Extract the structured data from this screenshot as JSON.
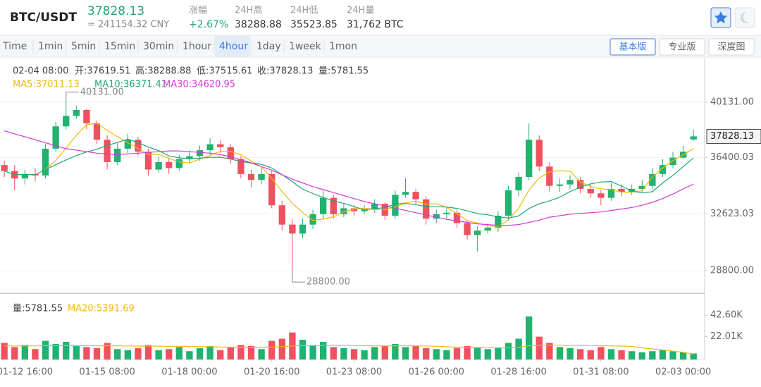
{
  "header": {
    "pair": "BTC/USDT",
    "price": "37828.13",
    "price_cny": "≈ 241154.32 CNY",
    "stats": [
      {
        "label": "涨幅",
        "value": "+2.67%"
      },
      {
        "label": "24H高",
        "value": "38288.88"
      },
      {
        "label": "24H低",
        "value": "35523.85"
      },
      {
        "label": "24H量",
        "value": "31,762 BTC"
      }
    ]
  },
  "toolbar": {
    "intervals": [
      {
        "label": "Time"
      },
      {
        "label": "1min"
      },
      {
        "label": "5min"
      },
      {
        "label": "15min"
      },
      {
        "label": "30min"
      },
      {
        "label": "1hour"
      },
      {
        "label": "4hour",
        "active": true
      },
      {
        "label": "1day"
      },
      {
        "label": "1week"
      },
      {
        "label": "1mon"
      }
    ],
    "views": [
      {
        "label": "基本版",
        "active": true
      },
      {
        "label": "专业版"
      },
      {
        "label": "深度图"
      }
    ]
  },
  "chart_data": [
    {
      "type": "candlestick",
      "info": [
        "02-04 08:00",
        "开:37619.51",
        "高:38288.88",
        "低:37515.61",
        "收:37828.13",
        "量:5781.55"
      ],
      "legend": [
        "MA5:37011.13",
        "MA10:36371.41",
        "MA30:34620.95"
      ],
      "categories": [
        null,
        null,
        "01-12 16:00",
        null,
        null,
        null,
        null,
        null,
        null,
        null,
        "01-15 08:00",
        null,
        null,
        null,
        null,
        null,
        null,
        null,
        "01-18 00:00",
        null,
        null,
        null,
        null,
        null,
        null,
        null,
        "01-20 16:00",
        null,
        null,
        null,
        null,
        null,
        null,
        null,
        "01-23 08:00",
        null,
        null,
        null,
        null,
        null,
        null,
        null,
        "01-26 00:00",
        null,
        null,
        null,
        null,
        null,
        null,
        null,
        "01-28 16:00",
        null,
        null,
        null,
        null,
        null,
        null,
        null,
        "01-31 08:00",
        null,
        null,
        null,
        null,
        null,
        null,
        null,
        "02-03 00:00",
        null
      ],
      "open": [
        35900,
        35500,
        35000,
        35300,
        35200,
        37000,
        38500,
        39200,
        39600,
        38700,
        37600,
        36100,
        37000,
        37600,
        36800,
        35600,
        36100,
        35700,
        36300,
        36500,
        36900,
        37300,
        37100,
        36300,
        35300,
        34900,
        35300,
        33200,
        31900,
        31300,
        31900,
        32600,
        33700,
        32600,
        33000,
        32800,
        32900,
        33300,
        32500,
        33900,
        34100,
        33600,
        32300,
        32600,
        32700,
        32000,
        31200,
        31500,
        31700,
        32500,
        34200,
        35100,
        37600,
        35800,
        34500,
        34600,
        34900,
        34300,
        34000,
        33700,
        34300,
        34100,
        34300,
        34500,
        35300,
        35900,
        36400,
        37619.51
      ],
      "high": [
        36200,
        35900,
        35600,
        35700,
        37300,
        38800,
        40131,
        39900,
        39700,
        38900,
        37900,
        37400,
        38000,
        37800,
        37000,
        36500,
        36400,
        36600,
        36900,
        37200,
        37700,
        37600,
        37300,
        36500,
        35600,
        35700,
        35500,
        33500,
        32300,
        32300,
        32900,
        34200,
        33900,
        33300,
        33200,
        33200,
        33600,
        33400,
        34200,
        35000,
        34300,
        33800,
        32900,
        33000,
        32900,
        32200,
        31800,
        32000,
        32800,
        34500,
        35400,
        38700,
        37900,
        36100,
        35000,
        35200,
        35100,
        34600,
        34200,
        34700,
        34600,
        34600,
        34900,
        35700,
        36300,
        36800,
        37200,
        38288.88
      ],
      "low": [
        35100,
        34200,
        34600,
        34800,
        35000,
        36800,
        38300,
        39000,
        38300,
        37300,
        35600,
        35900,
        36700,
        36500,
        35200,
        35400,
        35300,
        35500,
        36000,
        36200,
        36600,
        36700,
        36000,
        35000,
        34400,
        34600,
        33000,
        31500,
        28800,
        31000,
        31600,
        32300,
        32300,
        32400,
        32500,
        32600,
        32700,
        32200,
        32300,
        33700,
        33300,
        31900,
        32000,
        32300,
        31700,
        30900,
        30100,
        31300,
        31400,
        32200,
        33800,
        34900,
        35500,
        34100,
        34100,
        34300,
        34000,
        33700,
        33200,
        33500,
        33800,
        33900,
        34100,
        34300,
        35100,
        35700,
        36300,
        37515.61
      ],
      "close": [
        35500,
        35000,
        35300,
        35200,
        37000,
        38500,
        39200,
        39600,
        38700,
        37600,
        36100,
        37000,
        37600,
        36800,
        35600,
        36100,
        35700,
        36300,
        36500,
        36900,
        37300,
        37100,
        36300,
        35300,
        34900,
        35300,
        33200,
        31900,
        31300,
        31900,
        32600,
        33700,
        32600,
        33000,
        32800,
        32900,
        33300,
        32500,
        33900,
        34100,
        33600,
        32300,
        32600,
        32700,
        32000,
        31200,
        31500,
        31700,
        32500,
        34200,
        35100,
        37600,
        35800,
        34500,
        34600,
        34900,
        34300,
        34000,
        33700,
        34300,
        34100,
        34300,
        34500,
        35300,
        35900,
        36400,
        36800,
        37828.13
      ],
      "up_color": "#21b26f",
      "down_color": "#f0515f",
      "series": [
        {
          "color": "#f0b90b",
          "values": [
            35500,
            35250,
            35270,
            35250,
            35600,
            36200,
            37040,
            37900,
            38600,
            38720,
            38240,
            37800,
            37400,
            37020,
            36620,
            36620,
            36360,
            36100,
            36040,
            36300,
            36540,
            36820,
            36820,
            36580,
            36180,
            35780,
            35000,
            34120,
            33320,
            32720,
            32180,
            32280,
            32420,
            32760,
            32940,
            33000,
            32920,
            32900,
            33080,
            33360,
            33480,
            33280,
            33300,
            33060,
            32640,
            32160,
            32000,
            31820,
            31780,
            32220,
            33000,
            34220,
            35040,
            35440,
            35520,
            35480,
            34760,
            34460,
            34300,
            34240,
            34080,
            34080,
            34180,
            35100,
            35700,
            36200,
            36600,
            37011.13
          ]
        },
        {
          "color": "#1fa67a",
          "values": [
            35500,
            35250,
            35270,
            35250,
            35600,
            35920,
            36243,
            36538,
            36778,
            36960,
            37220,
            37420,
            37650,
            37410,
            37110,
            36870,
            36520,
            36390,
            36330,
            36360,
            36420,
            36430,
            36300,
            36150,
            36030,
            35950,
            35700,
            35260,
            34780,
            34280,
            33990,
            33720,
            33480,
            33330,
            33120,
            32880,
            32980,
            33040,
            33300,
            33320,
            33240,
            33110,
            33100,
            33080,
            32990,
            32820,
            32640,
            32560,
            32420,
            32340,
            32480,
            32980,
            33300,
            33490,
            33750,
            34120,
            34410,
            34640,
            34760,
            34790,
            34490,
            34160,
            34030,
            34110,
            34700,
            35200,
            35800,
            36371.41
          ]
        },
        {
          "color": "#d63ad8",
          "values": [
            38200,
            38000,
            37800,
            37600,
            37400,
            37200,
            37000,
            36900,
            36800,
            36700,
            36650,
            36600,
            36650,
            36700,
            36750,
            36800,
            36850,
            36850,
            36800,
            36750,
            36700,
            36600,
            36450,
            36250,
            36050,
            35800,
            35550,
            35250,
            34950,
            34700,
            34450,
            34250,
            34050,
            33850,
            33650,
            33450,
            33300,
            33150,
            33000,
            32850,
            32700,
            32550,
            32400,
            32250,
            32150,
            32050,
            31950,
            31900,
            31850,
            31850,
            31900,
            32050,
            32200,
            32400,
            32500,
            32600,
            32650,
            32700,
            32750,
            32850,
            32950,
            33050,
            33200,
            33400,
            33650,
            33950,
            34300,
            34620.95
          ]
        }
      ],
      "ylim": [
        27290,
        43105
      ],
      "yticks": [
        {
          "value": 40131,
          "label": "40131.00"
        },
        {
          "value": 36400.03,
          "label": "36400.03"
        },
        {
          "value": 32623.03,
          "label": "32623.03"
        },
        {
          "value": 28800,
          "label": "28800.00"
        }
      ],
      "grid": true,
      "annotations": [
        {
          "value": 40131,
          "label": "40131.00"
        },
        {
          "value": 28800,
          "label": "28800.00"
        }
      ],
      "last_price": {
        "value": 37828.13,
        "label": "37828.13"
      }
    },
    {
      "type": "bar",
      "legend": [
        "量:5781.55",
        "MA20:5391.69"
      ],
      "values": [
        16000,
        12000,
        14000,
        10000,
        18000,
        15000,
        17000,
        13000,
        12000,
        11000,
        16000,
        10000,
        9000,
        11000,
        14000,
        9000,
        10000,
        12000,
        8000,
        11000,
        13000,
        9000,
        12000,
        14000,
        13000,
        10000,
        18000,
        20000,
        26000,
        19000,
        14000,
        17000,
        12000,
        11000,
        10000,
        9000,
        12000,
        13000,
        15000,
        12000,
        13000,
        11000,
        10000,
        9000,
        11000,
        13000,
        12000,
        10000,
        11000,
        16000,
        20000,
        41500,
        22000,
        16000,
        12000,
        11000,
        10000,
        9000,
        12000,
        10000,
        9000,
        8000,
        7000,
        8000,
        9000,
        8000,
        7000,
        5781.55
      ],
      "series": [
        {
          "color": "#f0b90b",
          "values": [
            13000,
            13000,
            13200,
            13100,
            13300,
            13400,
            13500,
            13400,
            13300,
            13200,
            13300,
            13200,
            13000,
            12900,
            12900,
            12800,
            12700,
            12700,
            12500,
            12400,
            12300,
            12100,
            11900,
            11900,
            11800,
            11800,
            12000,
            12400,
            13000,
            13300,
            13400,
            13600,
            13600,
            13500,
            13400,
            13300,
            13200,
            13100,
            13200,
            13300,
            13200,
            13000,
            12700,
            12300,
            11900,
            11600,
            11500,
            11400,
            11300,
            11400,
            11700,
            13100,
            13500,
            13700,
            13800,
            13700,
            13600,
            13400,
            13200,
            13100,
            12900,
            12600,
            11300,
            10200,
            9300,
            8100,
            6900,
            5391.69
          ]
        }
      ],
      "ylim": [
        0,
        62450
      ],
      "yticks": [
        {
          "value": 42600,
          "label": "42.60K"
        },
        {
          "value": 22010,
          "label": "22.01K"
        }
      ]
    }
  ]
}
